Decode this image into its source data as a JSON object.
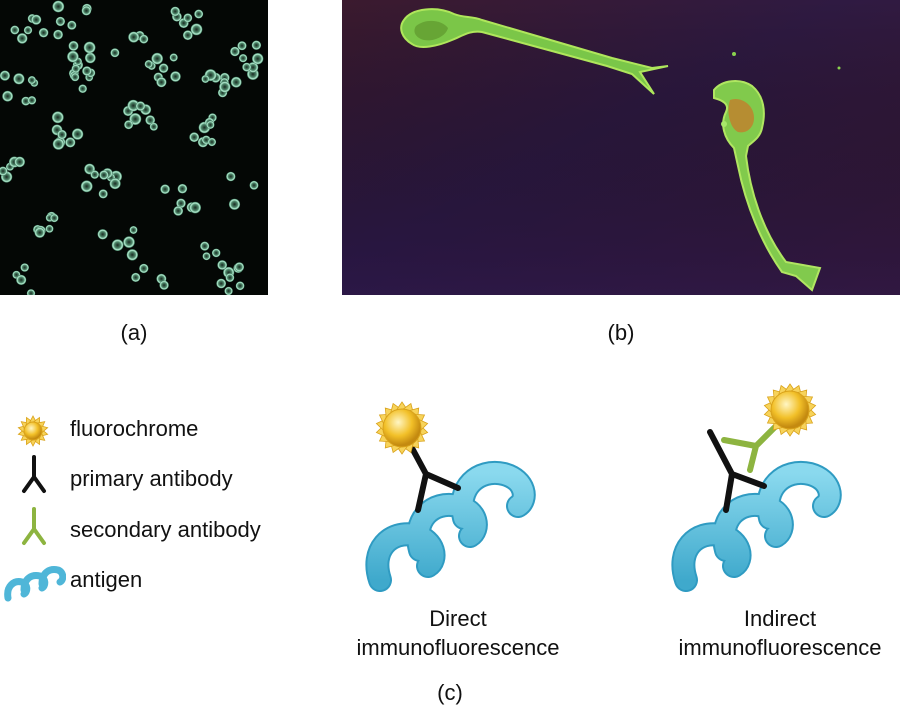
{
  "panels": {
    "a": {
      "label": "(a)"
    },
    "b": {
      "label": "(b)"
    },
    "c": {
      "label": "(c)"
    }
  },
  "legend": [
    {
      "icon": "fluorochrome-icon",
      "label": "fluorochrome"
    },
    {
      "icon": "primary-antibody-icon",
      "label": "primary antibody"
    },
    {
      "icon": "secondary-antibody-icon",
      "label": "secondary antibody"
    },
    {
      "icon": "antigen-icon",
      "label": "antigen"
    }
  ],
  "diagrams": {
    "direct": {
      "line1": "Direct",
      "line2": "immunofluorescence"
    },
    "indirect": {
      "line1": "Indirect",
      "line2": "immunofluorescence"
    }
  },
  "colors": {
    "primary_antibody": "#111111",
    "secondary_antibody": "#8db440",
    "antigen": "#5bc3e0",
    "antigen_edge": "#2e9bc0",
    "fluorochrome": "#f2c028",
    "micrograph_a_background": "#050806",
    "micrograph_b_background": "#3a1a3a"
  }
}
